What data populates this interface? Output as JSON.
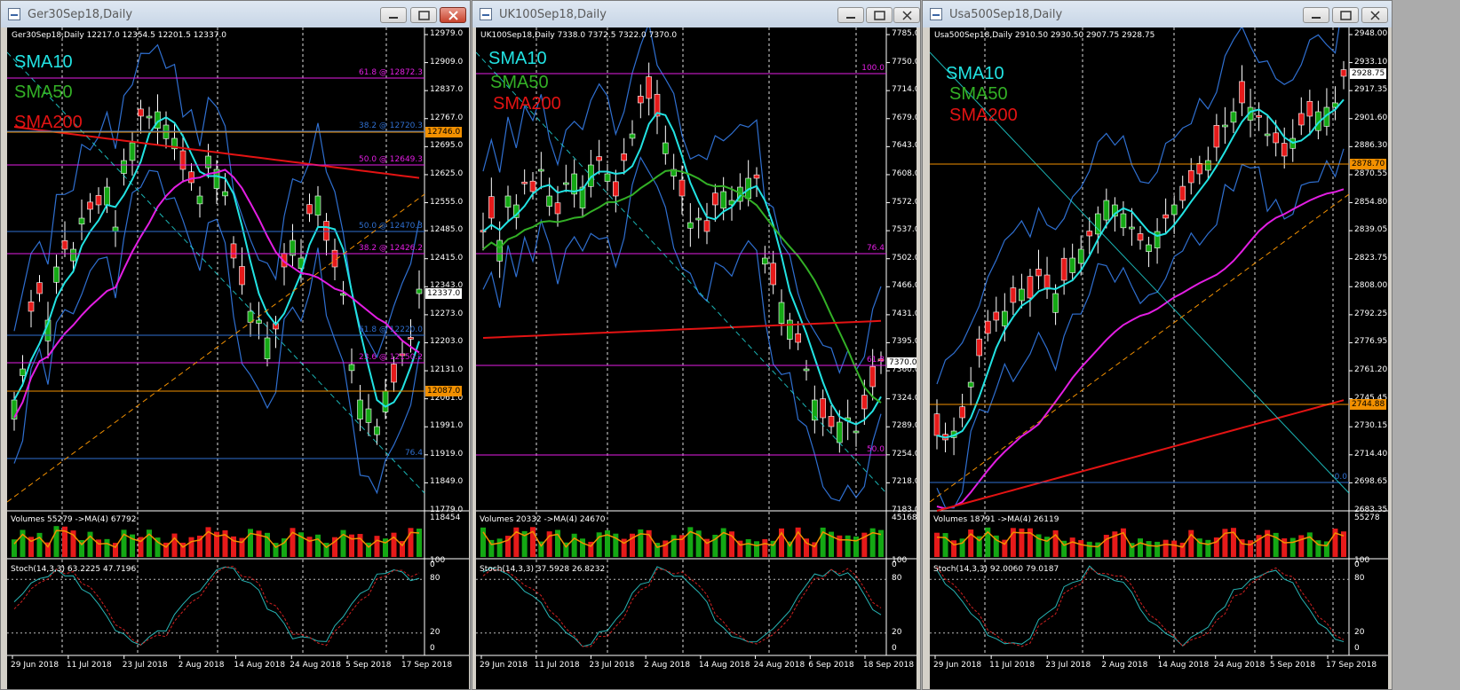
{
  "colors": {
    "sma10": "#22e3e3",
    "sma50": "#33b026",
    "sma200": "#e31313",
    "bull": "#14a814",
    "bear": "#e61a1a",
    "magenta": "#e31ee3",
    "blue": "#2f6fd0",
    "orange": "#f29000"
  },
  "windows": [
    {
      "title": "Ger30Sep18,Daily",
      "header": "Ger30Sep18,Daily  12217.0  12354.5  12201.5  12337.0",
      "sma": [
        "SMA10",
        "SMA50",
        "SMA200"
      ],
      "price_ticks": [
        "12979.0",
        "12909.0",
        "12837.0",
        "12767.0",
        "12695.0",
        "12625.0",
        "12555.0",
        "12485.0",
        "12415.0",
        "12343.0",
        "12273.0",
        "12203.0",
        "12131.0",
        "12061.0",
        "11991.0",
        "11919.0",
        "11849.0",
        "11779.0"
      ],
      "price_boxes": [
        {
          "text": "12746.0",
          "kind": "orange"
        },
        {
          "text": "12337.0",
          "kind": "white"
        },
        {
          "text": "12087.0",
          "kind": "orange"
        }
      ],
      "fib_labels": [
        {
          "text": "61.8 @ 12872.3",
          "kind": "magenta"
        },
        {
          "text": "38.2 @ 12720.3",
          "kind": "blue"
        },
        {
          "text": "50.0 @ 12649.3",
          "kind": "magenta"
        },
        {
          "text": "50.0 @ 12470.3",
          "kind": "blue"
        },
        {
          "text": "38.2 @ 12426.2",
          "kind": "magenta"
        },
        {
          "text": "61.8 @ 12220.0",
          "kind": "blue"
        },
        {
          "text": "23.6 @ 12150.2",
          "kind": "magenta"
        },
        {
          "text": "76.4",
          "kind": "blue"
        }
      ],
      "volumes": "Volumes 55279  ->MA(4) 67792",
      "vol_ticks": [
        "118454",
        "0"
      ],
      "stoch": "Stoch(14,3,3) 63.2225 47.7196",
      "stoch_ticks": [
        "100",
        "80",
        "20",
        "0"
      ],
      "dates": [
        "29 Jun 2018",
        "11 Jul 2018",
        "23 Jul 2018",
        "2 Aug 2018",
        "14 Aug 2018",
        "24 Aug 2018",
        "5 Sep 2018",
        "17 Sep 2018"
      ]
    },
    {
      "title": "UK100Sep18,Daily",
      "header": "UK100Sep18,Daily  7338.0  7372.5  7322.0  7370.0",
      "sma": [
        "SMA10",
        "SMA50",
        "SMA200"
      ],
      "price_ticks": [
        "7785.0",
        "7750.0",
        "7714.0",
        "7679.0",
        "7643.0",
        "7608.0",
        "7572.0",
        "7537.0",
        "7502.0",
        "7466.0",
        "7431.0",
        "7395.0",
        "7360.0",
        "7324.0",
        "7289.0",
        "7254.0",
        "7218.0",
        "7183.0"
      ],
      "price_boxes": [
        {
          "text": "7370.0",
          "kind": "white"
        }
      ],
      "fib_labels": [
        {
          "text": "100.0",
          "kind": "magenta"
        },
        {
          "text": "76.4",
          "kind": "magenta"
        },
        {
          "text": "61.8",
          "kind": "magenta"
        },
        {
          "text": "50.0",
          "kind": "magenta"
        }
      ],
      "volumes": "Volumes 20332  ->MA(4) 24670",
      "vol_ticks": [
        "45168",
        "0"
      ],
      "stoch": "Stoch(14,3,3) 37.5928 26.8232",
      "stoch_ticks": [
        "100",
        "80",
        "20",
        "0"
      ],
      "dates": [
        "29 Jun 2018",
        "11 Jul 2018",
        "23 Jul 2018",
        "2 Aug 2018",
        "14 Aug 2018",
        "24 Aug 2018",
        "6 Sep 2018",
        "18 Sep 2018"
      ]
    },
    {
      "title": "Usa500Sep18,Daily",
      "header": "Usa500Sep18,Daily  2910.50  2930.50  2907.75  2928.75",
      "sma": [
        "SMA10",
        "SMA50",
        "SMA200"
      ],
      "price_ticks": [
        "2948.00",
        "2933.10",
        "2917.35",
        "2901.60",
        "2886.30",
        "2870.55",
        "2854.80",
        "2839.05",
        "2823.75",
        "2808.00",
        "2792.25",
        "2776.95",
        "2761.20",
        "2745.45",
        "2730.15",
        "2714.40",
        "2698.65",
        "2683.35"
      ],
      "price_boxes": [
        {
          "text": "2928.75",
          "kind": "white"
        },
        {
          "text": "2878.70",
          "kind": "orange"
        },
        {
          "text": "2744.88",
          "kind": "orange"
        }
      ],
      "fib_labels": [
        {
          "text": "0.0",
          "kind": "blue"
        }
      ],
      "volumes": "Volumes 18791  ->MA(4) 26119",
      "vol_ticks": [
        "55278",
        "0"
      ],
      "stoch": "Stoch(14,3,3) 92.0060 79.0187",
      "stoch_ticks": [
        "100",
        "80",
        "20",
        "0"
      ],
      "dates": [
        "29 Jun 2018",
        "11 Jul 2018",
        "23 Jul 2018",
        "2 Aug 2018",
        "14 Aug 2018",
        "24 Aug 2018",
        "5 Sep 2018",
        "17 Sep 2018"
      ]
    }
  ]
}
